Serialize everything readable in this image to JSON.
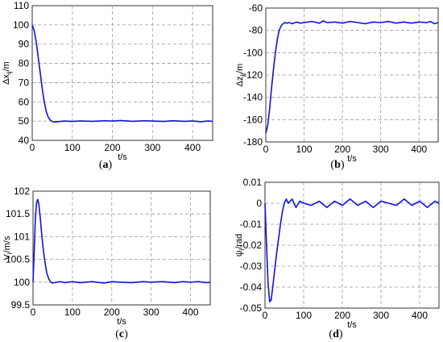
{
  "chart_data": [
    {
      "type": "line",
      "caption": "(a)",
      "xlabel": "t/s",
      "ylabel": "Δx_ij/m",
      "xlim": [
        0,
        450
      ],
      "ylim": [
        40,
        110
      ],
      "xticks": [
        0,
        100,
        200,
        300,
        400
      ],
      "yticks": [
        40,
        50,
        60,
        70,
        80,
        90,
        100,
        110
      ],
      "grid": true,
      "series": [
        {
          "color": "#1010e0",
          "x": [
            0,
            5,
            10,
            15,
            20,
            25,
            30,
            35,
            40,
            45,
            50,
            55,
            60,
            70,
            80,
            100,
            120,
            150,
            180,
            200,
            220,
            250,
            280,
            300,
            330,
            350,
            380,
            400,
            420,
            440,
            450
          ],
          "y": [
            100,
            97,
            91,
            83,
            75,
            67,
            60,
            55,
            52,
            50.5,
            49.8,
            49.5,
            49.6,
            49.8,
            50.0,
            49.8,
            50.1,
            49.9,
            50.2,
            50.0,
            50.3,
            49.9,
            50.2,
            50.0,
            49.8,
            50.2,
            49.9,
            50.1,
            49.7,
            50.1,
            49.8
          ]
        }
      ]
    },
    {
      "type": "line",
      "caption": "(b)",
      "xlabel": "t/s",
      "ylabel": "Δz_ij/m",
      "xlim": [
        0,
        450
      ],
      "ylim": [
        -180,
        -60
      ],
      "xticks": [
        0,
        100,
        200,
        300,
        400
      ],
      "yticks": [
        -180,
        -160,
        -140,
        -120,
        -100,
        -80,
        -60
      ],
      "grid": true,
      "series": [
        {
          "color": "#1010e0",
          "x": [
            0,
            5,
            10,
            15,
            20,
            25,
            30,
            35,
            40,
            45,
            50,
            55,
            60,
            70,
            80,
            90,
            100,
            120,
            140,
            150,
            160,
            180,
            200,
            220,
            240,
            260,
            280,
            300,
            320,
            340,
            360,
            380,
            400,
            420,
            430,
            440,
            450
          ],
          "y": [
            -172,
            -165,
            -150,
            -132,
            -115,
            -100,
            -88,
            -80,
            -76,
            -74,
            -73,
            -73.5,
            -73,
            -74,
            -72.5,
            -73.5,
            -73,
            -72,
            -73.5,
            -71.5,
            -73,
            -72.5,
            -73.5,
            -72,
            -73,
            -74,
            -72.5,
            -73,
            -72,
            -73.5,
            -72.5,
            -73.5,
            -72.5,
            -73,
            -72,
            -74,
            -73
          ]
        }
      ]
    },
    {
      "type": "line",
      "caption": "(c)",
      "xlabel": "t/s",
      "ylabel": "V_i/m/s",
      "xlim": [
        0,
        450
      ],
      "ylim": [
        99.5,
        102
      ],
      "xticks": [
        0,
        100,
        200,
        300,
        400
      ],
      "yticks": [
        99.5,
        100,
        100.5,
        101,
        101.5,
        102
      ],
      "grid": true,
      "series": [
        {
          "color": "#1010e0",
          "x": [
            0,
            3,
            6,
            9,
            12,
            15,
            18,
            21,
            25,
            30,
            35,
            40,
            45,
            50,
            55,
            60,
            70,
            80,
            100,
            120,
            150,
            180,
            200,
            220,
            250,
            280,
            300,
            330,
            360,
            380,
            400,
            420,
            440,
            450
          ],
          "y": [
            100,
            100.7,
            101.4,
            101.75,
            101.82,
            101.7,
            101.45,
            101.15,
            100.8,
            100.45,
            100.2,
            100.07,
            100.0,
            99.98,
            99.99,
            100.0,
            100.01,
            99.99,
            100.01,
            99.99,
            100.01,
            99.98,
            100.01,
            100.0,
            99.99,
            100.01,
            100.0,
            100.01,
            99.99,
            100.01,
            100.0,
            100.01,
            99.99,
            100.0
          ]
        }
      ]
    },
    {
      "type": "line",
      "caption": "(d)",
      "xlabel": "t/s",
      "ylabel": "ψ_i/rad",
      "xlim": [
        0,
        450
      ],
      "ylim": [
        -0.05,
        0.01
      ],
      "xticks": [
        0,
        100,
        200,
        300,
        400
      ],
      "yticks": [
        -0.05,
        -0.04,
        -0.03,
        -0.02,
        -0.01,
        0,
        0.01
      ],
      "grid": true,
      "series": [
        {
          "color": "#1010e0",
          "x": [
            0,
            4,
            8,
            12,
            16,
            20,
            25,
            30,
            35,
            40,
            45,
            50,
            55,
            60,
            70,
            80,
            90,
            100,
            120,
            140,
            160,
            180,
            200,
            220,
            240,
            260,
            280,
            300,
            320,
            340,
            360,
            380,
            400,
            420,
            440,
            450
          ],
          "y": [
            0,
            -0.02,
            -0.038,
            -0.047,
            -0.046,
            -0.04,
            -0.032,
            -0.024,
            -0.017,
            -0.01,
            -0.004,
            0.0,
            0.002,
            0.0,
            0.002,
            -0.002,
            0.001,
            0.0,
            -0.001,
            0.001,
            -0.002,
            0.001,
            -0.001,
            0.002,
            -0.001,
            0.001,
            -0.002,
            0.001,
            0.0,
            -0.001,
            0.002,
            -0.001,
            0.001,
            -0.002,
            0.001,
            0.0
          ]
        }
      ]
    }
  ]
}
